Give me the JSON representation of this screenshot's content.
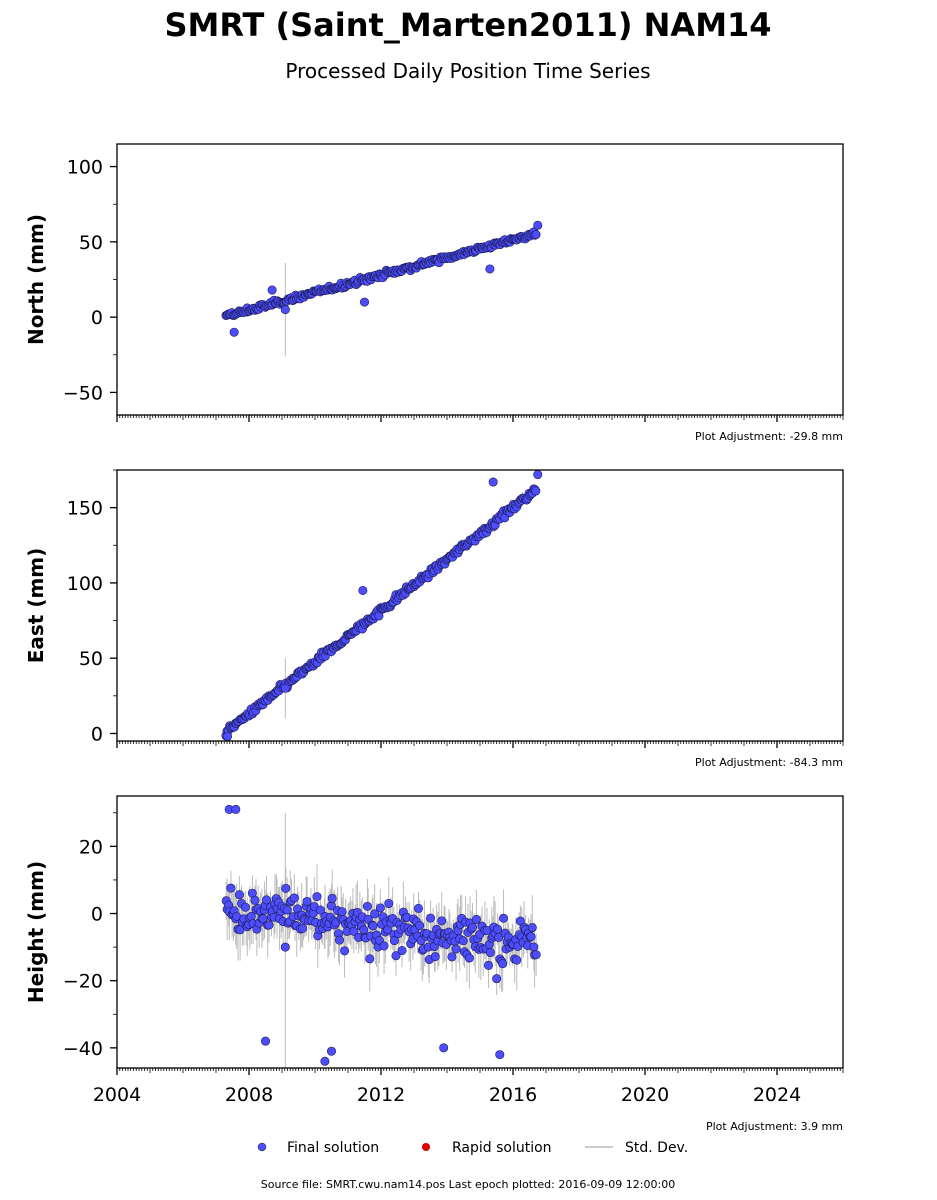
{
  "title": "SMRT (Saint_Marten2011) NAM14",
  "subtitle": "Processed Daily Position Time Series",
  "legend": {
    "final": "Final solution",
    "rapid": "Rapid solution",
    "std": "Std. Dev."
  },
  "colors": {
    "final": "#4d4dff",
    "rapid": "#e00000",
    "std": "#bbbbbb",
    "axis": "#000000"
  },
  "footer": "Source file: SMRT.cwu.nam14.pos  Last epoch plotted: 2016-09-09 12:00:00",
  "chart_data": [
    {
      "type": "scatter",
      "ylabel": "North (mm)",
      "adjustment": "Plot Adjustment: -29.8 mm",
      "xlim": [
        2004,
        2026
      ],
      "ylim": [
        -65,
        115
      ],
      "yticks": [
        -50,
        0,
        50,
        100
      ],
      "ytick_labels": [
        "−50",
        "0",
        "50",
        "100"
      ],
      "xticks": [
        2004,
        2008,
        2012,
        2016,
        2020,
        2024
      ],
      "xtick_labels": [],
      "grid": false,
      "trend": {
        "x0": 2007.3,
        "x1": 2016.7,
        "y0": 0.5,
        "y1": 55.5
      },
      "noise": 2.4,
      "stddev": 2.5,
      "outliers": [
        {
          "x": 2007.55,
          "y": -10,
          "err": 0
        },
        {
          "x": 2008.7,
          "y": 18,
          "err": 0
        },
        {
          "x": 2009.1,
          "y": 5,
          "err": 31
        },
        {
          "x": 2011.5,
          "y": 10,
          "err": 0
        },
        {
          "x": 2015.3,
          "y": 32,
          "err": 0
        },
        {
          "x": 2016.75,
          "y": 61,
          "err": 0
        }
      ]
    },
    {
      "type": "scatter",
      "ylabel": "East (mm)",
      "adjustment": "Plot Adjustment: -84.3 mm",
      "xlim": [
        2004,
        2026
      ],
      "ylim": [
        -5,
        175
      ],
      "yticks": [
        0,
        50,
        100,
        150
      ],
      "ytick_labels": [
        "0",
        "50",
        "100",
        "150"
      ],
      "xticks": [
        2004,
        2008,
        2012,
        2016,
        2020,
        2024
      ],
      "xtick_labels": [],
      "grid": false,
      "trend": {
        "x0": 2007.3,
        "x1": 2016.7,
        "y0": 1,
        "y1": 162
      },
      "noise": 3.0,
      "stddev": 3,
      "outliers": [
        {
          "x": 2009.1,
          "y": 30,
          "err": 20
        },
        {
          "x": 2011.45,
          "y": 95,
          "err": 0
        },
        {
          "x": 2015.4,
          "y": 167,
          "err": 0
        },
        {
          "x": 2016.75,
          "y": 172,
          "err": 0
        },
        {
          "x": 2007.35,
          "y": -2,
          "err": 0
        }
      ]
    },
    {
      "type": "scatter",
      "ylabel": "Height (mm)",
      "adjustment": "Plot Adjustment: 3.9 mm",
      "xlim": [
        2004,
        2026
      ],
      "ylim": [
        -46,
        35
      ],
      "yticks": [
        -40,
        -20,
        0,
        20
      ],
      "ytick_labels": [
        "−40",
        "−20",
        "0",
        "20"
      ],
      "xticks": [
        2004,
        2008,
        2012,
        2016,
        2020,
        2024
      ],
      "xtick_labels": [
        "2004",
        "2008",
        "2012",
        "2016",
        "2020",
        "2024"
      ],
      "grid": false,
      "trend": {
        "x0": 2007.3,
        "x1": 2016.7,
        "y0": 2,
        "y1": -10
      },
      "noise": 9,
      "stddev": 7,
      "outliers": [
        {
          "x": 2007.4,
          "y": 31,
          "err": 0
        },
        {
          "x": 2007.6,
          "y": 31,
          "err": 0
        },
        {
          "x": 2008.5,
          "y": -38,
          "err": 0
        },
        {
          "x": 2010.3,
          "y": -44,
          "err": 0
        },
        {
          "x": 2010.5,
          "y": -41,
          "err": 0
        },
        {
          "x": 2013.9,
          "y": -40,
          "err": 0
        },
        {
          "x": 2015.6,
          "y": -42,
          "err": 0
        },
        {
          "x": 2009.1,
          "y": -10,
          "err": 40
        }
      ]
    }
  ]
}
